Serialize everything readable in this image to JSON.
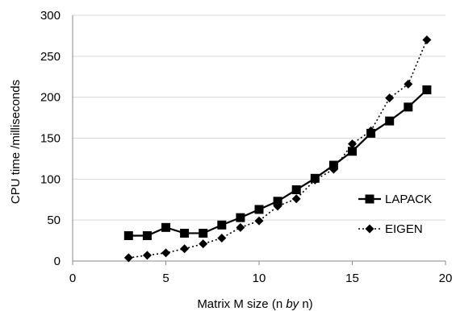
{
  "chart_data": {
    "type": "line",
    "title": "",
    "xlabel_parts": [
      {
        "text": "Matrix M size (n ",
        "italic": false
      },
      {
        "text": "by",
        "italic": true
      },
      {
        "text": " n)",
        "italic": false
      }
    ],
    "ylabel": "CPU time /milliseconds",
    "xlim": [
      0,
      20
    ],
    "ylim": [
      0,
      300
    ],
    "xticks": [
      0,
      5,
      10,
      15,
      20
    ],
    "yticks": [
      0,
      50,
      100,
      150,
      200,
      250,
      300
    ],
    "grid": "horizontal",
    "legend_position": "right",
    "series": [
      {
        "name": "LAPACK",
        "marker": "square",
        "line": "solid",
        "color": "#000000",
        "x": [
          3,
          4,
          5,
          6,
          7,
          8,
          9,
          10,
          11,
          12,
          13,
          14,
          15,
          16,
          17,
          18,
          19
        ],
        "y": [
          31,
          31,
          41,
          34,
          34,
          44,
          53,
          63,
          73,
          87,
          101,
          117,
          134,
          156,
          171,
          188,
          209
        ]
      },
      {
        "name": "EIGEN",
        "marker": "diamond",
        "line": "dotted",
        "color": "#000000",
        "x": [
          3,
          4,
          5,
          6,
          7,
          8,
          9,
          10,
          11,
          12,
          13,
          14,
          15,
          16,
          17,
          18,
          19
        ],
        "y": [
          4,
          7,
          10,
          15,
          21,
          28,
          41,
          49,
          67,
          76,
          99,
          112,
          143,
          159,
          199,
          216,
          270
        ]
      }
    ]
  }
}
